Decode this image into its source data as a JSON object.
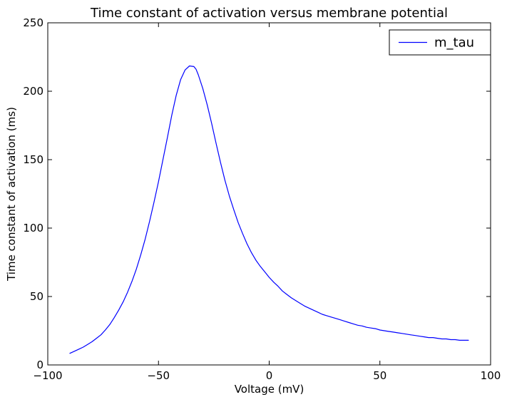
{
  "chart_data": {
    "type": "line",
    "title": "Time constant of activation versus membrane potential",
    "xlabel": "Voltage (mV)",
    "ylabel": "Time constant of activation (ms)",
    "xlim": [
      -100,
      100
    ],
    "ylim": [
      0,
      250
    ],
    "xticks": [
      -100,
      -50,
      0,
      50,
      100
    ],
    "xtick_labels": [
      "−100",
      "−50",
      "0",
      "50",
      "100"
    ],
    "yticks": [
      0,
      50,
      100,
      150,
      200,
      250
    ],
    "ytick_labels": [
      "0",
      "50",
      "100",
      "150",
      "200",
      "250"
    ],
    "grid": false,
    "legend": {
      "position": "upper-right"
    },
    "series": [
      {
        "name": "m_tau",
        "color": "#0000ff",
        "x": [
          -90,
          -88,
          -86,
          -84,
          -82,
          -80,
          -78,
          -76,
          -74,
          -72,
          -70,
          -68,
          -66,
          -64,
          -62,
          -60,
          -58,
          -56,
          -54,
          -52,
          -50,
          -48,
          -46,
          -44,
          -42,
          -40,
          -38,
          -36,
          -34,
          -33,
          -32,
          -30,
          -28,
          -26,
          -24,
          -22,
          -20,
          -18,
          -16,
          -14,
          -12,
          -10,
          -8,
          -6,
          -4,
          -2,
          0,
          2,
          4,
          6,
          8,
          10,
          12,
          14,
          16,
          18,
          20,
          22,
          24,
          26,
          28,
          30,
          32,
          34,
          36,
          38,
          40,
          42,
          44,
          46,
          48,
          50,
          52,
          54,
          56,
          58,
          60,
          62,
          64,
          66,
          68,
          70,
          72,
          74,
          76,
          78,
          80,
          82,
          84,
          86,
          88,
          90
        ],
        "y": [
          8.5,
          10,
          11.5,
          13,
          15,
          17,
          19.5,
          22,
          25.5,
          29.5,
          34.5,
          40,
          46,
          53,
          61,
          70,
          80.5,
          92,
          105,
          119,
          134,
          150,
          166,
          182.5,
          197,
          208.5,
          215.5,
          218.5,
          218,
          216,
          212,
          202,
          190,
          176.5,
          162,
          148,
          135,
          123.5,
          113.5,
          104,
          96,
          88.5,
          82,
          76.5,
          72,
          68,
          64,
          60.5,
          57.5,
          54,
          51.5,
          49,
          47,
          45,
          43,
          41.5,
          40,
          38.5,
          37,
          36,
          35,
          34,
          33,
          32,
          31,
          30,
          29,
          28.5,
          27.5,
          27,
          26.5,
          25.5,
          25,
          24.5,
          24,
          23.5,
          23,
          22.5,
          22,
          21.5,
          21,
          20.5,
          20,
          20,
          19.5,
          19,
          19,
          18.5,
          18.5,
          18,
          18,
          18
        ]
      }
    ]
  }
}
